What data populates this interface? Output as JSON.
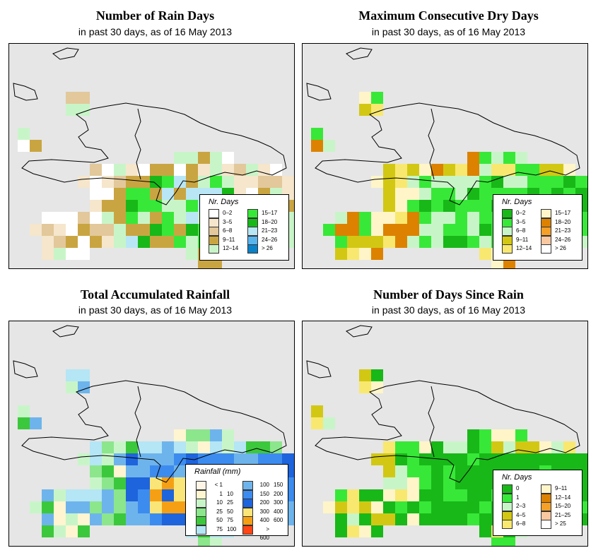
{
  "common": {
    "subtitle": "in past 30 days, as of  16 May 2013"
  },
  "panels": [
    {
      "title": "Number of Rain Days",
      "legend": {
        "title": "Nr. Days",
        "items": [
          {
            "label": "0–2",
            "color": "#ffffff"
          },
          {
            "label": "3–5",
            "color": "#f5e6cc"
          },
          {
            "label": "6–8",
            "color": "#e2c89a"
          },
          {
            "label": "9–11",
            "color": "#c9a542"
          },
          {
            "label": "12–14",
            "color": "#c8f5c8"
          },
          {
            "label": "15–17",
            "color": "#38e838"
          },
          {
            "label": "18–20",
            "color": "#18b818"
          },
          {
            "label": "21–23",
            "color": "#b8e6f5"
          },
          {
            "label": "24–26",
            "color": "#5ab4ec"
          },
          {
            "label": "> 26",
            "color": "#0a82c8"
          }
        ]
      }
    },
    {
      "title": "Maximum Consecutive Dry Days",
      "legend": {
        "title": "Nr. Days",
        "items": [
          {
            "label": "0–2",
            "color": "#18b818"
          },
          {
            "label": "3–5",
            "color": "#38e838"
          },
          {
            "label": "6–8",
            "color": "#c8f5c8"
          },
          {
            "label": "9–11",
            "color": "#d2c814"
          },
          {
            "label": "12–14",
            "color": "#f8e870"
          },
          {
            "label": "15–17",
            "color": "#fff5c8"
          },
          {
            "label": "18–20",
            "color": "#dc8200"
          },
          {
            "label": "21–23",
            "color": "#f5a028"
          },
          {
            "label": "24–26",
            "color": "#fac8a0"
          },
          {
            "label": "> 26",
            "color": "#ffffff"
          }
        ]
      }
    },
    {
      "title": "Total Accumulated Rainfall",
      "legend": {
        "title": "Rainfall (mm)",
        "items": [
          {
            "a": "< 1",
            "b": "",
            "color": "#fff5e6"
          },
          {
            "a": "1",
            "b": "10",
            "color": "#fff5d0"
          },
          {
            "a": "10",
            "b": "25",
            "color": "#c8f5c8"
          },
          {
            "a": "25",
            "b": "50",
            "color": "#8ce68c"
          },
          {
            "a": "50",
            "b": "75",
            "color": "#3cc83c"
          },
          {
            "a": "75",
            "b": "100",
            "color": "#b4e6f5"
          },
          {
            "a": "100",
            "b": "150",
            "color": "#6eb4ec"
          },
          {
            "a": "150",
            "b": "200",
            "color": "#3c8cf0"
          },
          {
            "a": "200",
            "b": "300",
            "color": "#1e64dc"
          },
          {
            "a": "300",
            "b": "400",
            "color": "#fae678"
          },
          {
            "a": "400",
            "b": "600",
            "color": "#f5a014"
          },
          {
            "a": "> 600",
            "b": "",
            "color": "#ff4614"
          }
        ]
      }
    },
    {
      "title": "Number of Days Since Rain",
      "legend": {
        "title": "Nr. Days",
        "items": [
          {
            "label": "0",
            "color": "#18b818"
          },
          {
            "label": "1",
            "color": "#38e838"
          },
          {
            "label": "2–3",
            "color": "#c8f5c8"
          },
          {
            "label": "4–5",
            "color": "#d2c814"
          },
          {
            "label": "6–8",
            "color": "#f8e870"
          },
          {
            "label": "9–11",
            "color": "#fff5c8"
          },
          {
            "label": "12–14",
            "color": "#dc8200"
          },
          {
            "label": "15–20",
            "color": "#f5a028"
          },
          {
            "label": "21–25",
            "color": "#fac8a0"
          },
          {
            "label": "> 25",
            "color": "#ffffff"
          }
        ]
      }
    }
  ]
}
